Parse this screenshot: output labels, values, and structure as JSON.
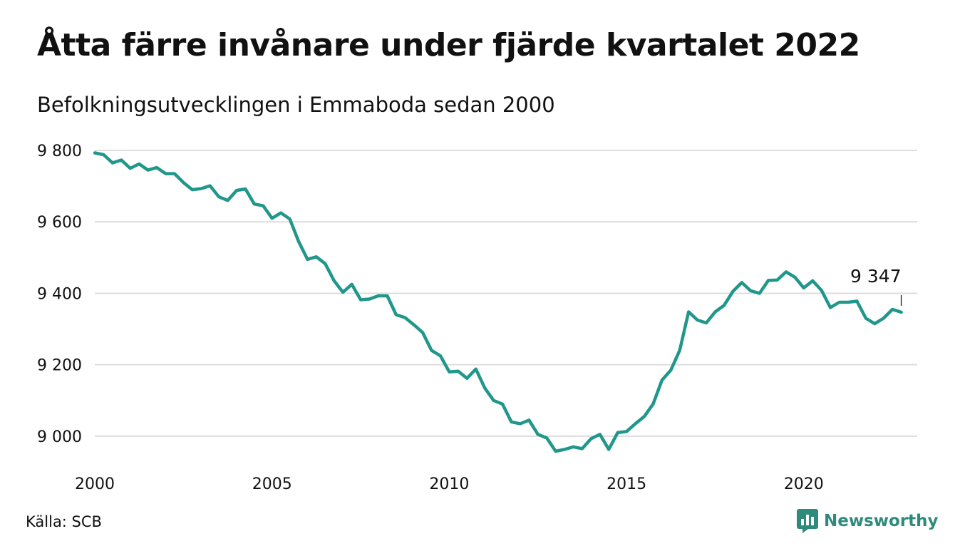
{
  "title": "Åtta färre invånare under fjärde kvartalet 2022",
  "subtitle": "Befolkningsutvecklingen i Emmaboda sedan 2000",
  "source": "Källa: SCB",
  "brand": {
    "name": "Newsworthy",
    "icon": "newsworthy-logo-icon",
    "color": "#2e8b7b"
  },
  "chart_data": {
    "type": "line",
    "x_start": 2000.0,
    "x_step": 0.25,
    "y": [
      9793,
      9788,
      9765,
      9773,
      9750,
      9762,
      9745,
      9752,
      9735,
      9735,
      9710,
      9690,
      9693,
      9701,
      9670,
      9660,
      9688,
      9692,
      9650,
      9645,
      9610,
      9625,
      9608,
      9545,
      9495,
      9502,
      9483,
      9435,
      9403,
      9425,
      9382,
      9384,
      9393,
      9393,
      9340,
      9332,
      9312,
      9290,
      9240,
      9225,
      9180,
      9182,
      9162,
      9188,
      9135,
      9100,
      9090,
      9040,
      9035,
      9045,
      9005,
      8995,
      8958,
      8963,
      8970,
      8965,
      8993,
      9005,
      8963,
      9010,
      9013,
      9035,
      9055,
      9090,
      9157,
      9185,
      9240,
      9348,
      9325,
      9317,
      9348,
      9366,
      9405,
      9430,
      9407,
      9400,
      9436,
      9437,
      9460,
      9445,
      9415,
      9435,
      9408,
      9360,
      9375,
      9375,
      9378,
      9330,
      9315,
      9330,
      9355,
      9347
    ],
    "line_color": "#21978b",
    "xticks": [
      2000,
      2005,
      2010,
      2015,
      2020
    ],
    "xtick_labels": [
      "2000",
      "2005",
      "2010",
      "2015",
      "2020"
    ],
    "yticks": [
      9000,
      9200,
      9400,
      9600,
      9800
    ],
    "ytick_labels": [
      "9 000",
      "9 200",
      "9 400",
      "9 600",
      "9 800"
    ],
    "xlim": [
      2000,
      2023.2
    ],
    "ylim": [
      8920,
      9800
    ],
    "grid": true,
    "annotation": {
      "label": "9 347",
      "point": "last"
    }
  }
}
